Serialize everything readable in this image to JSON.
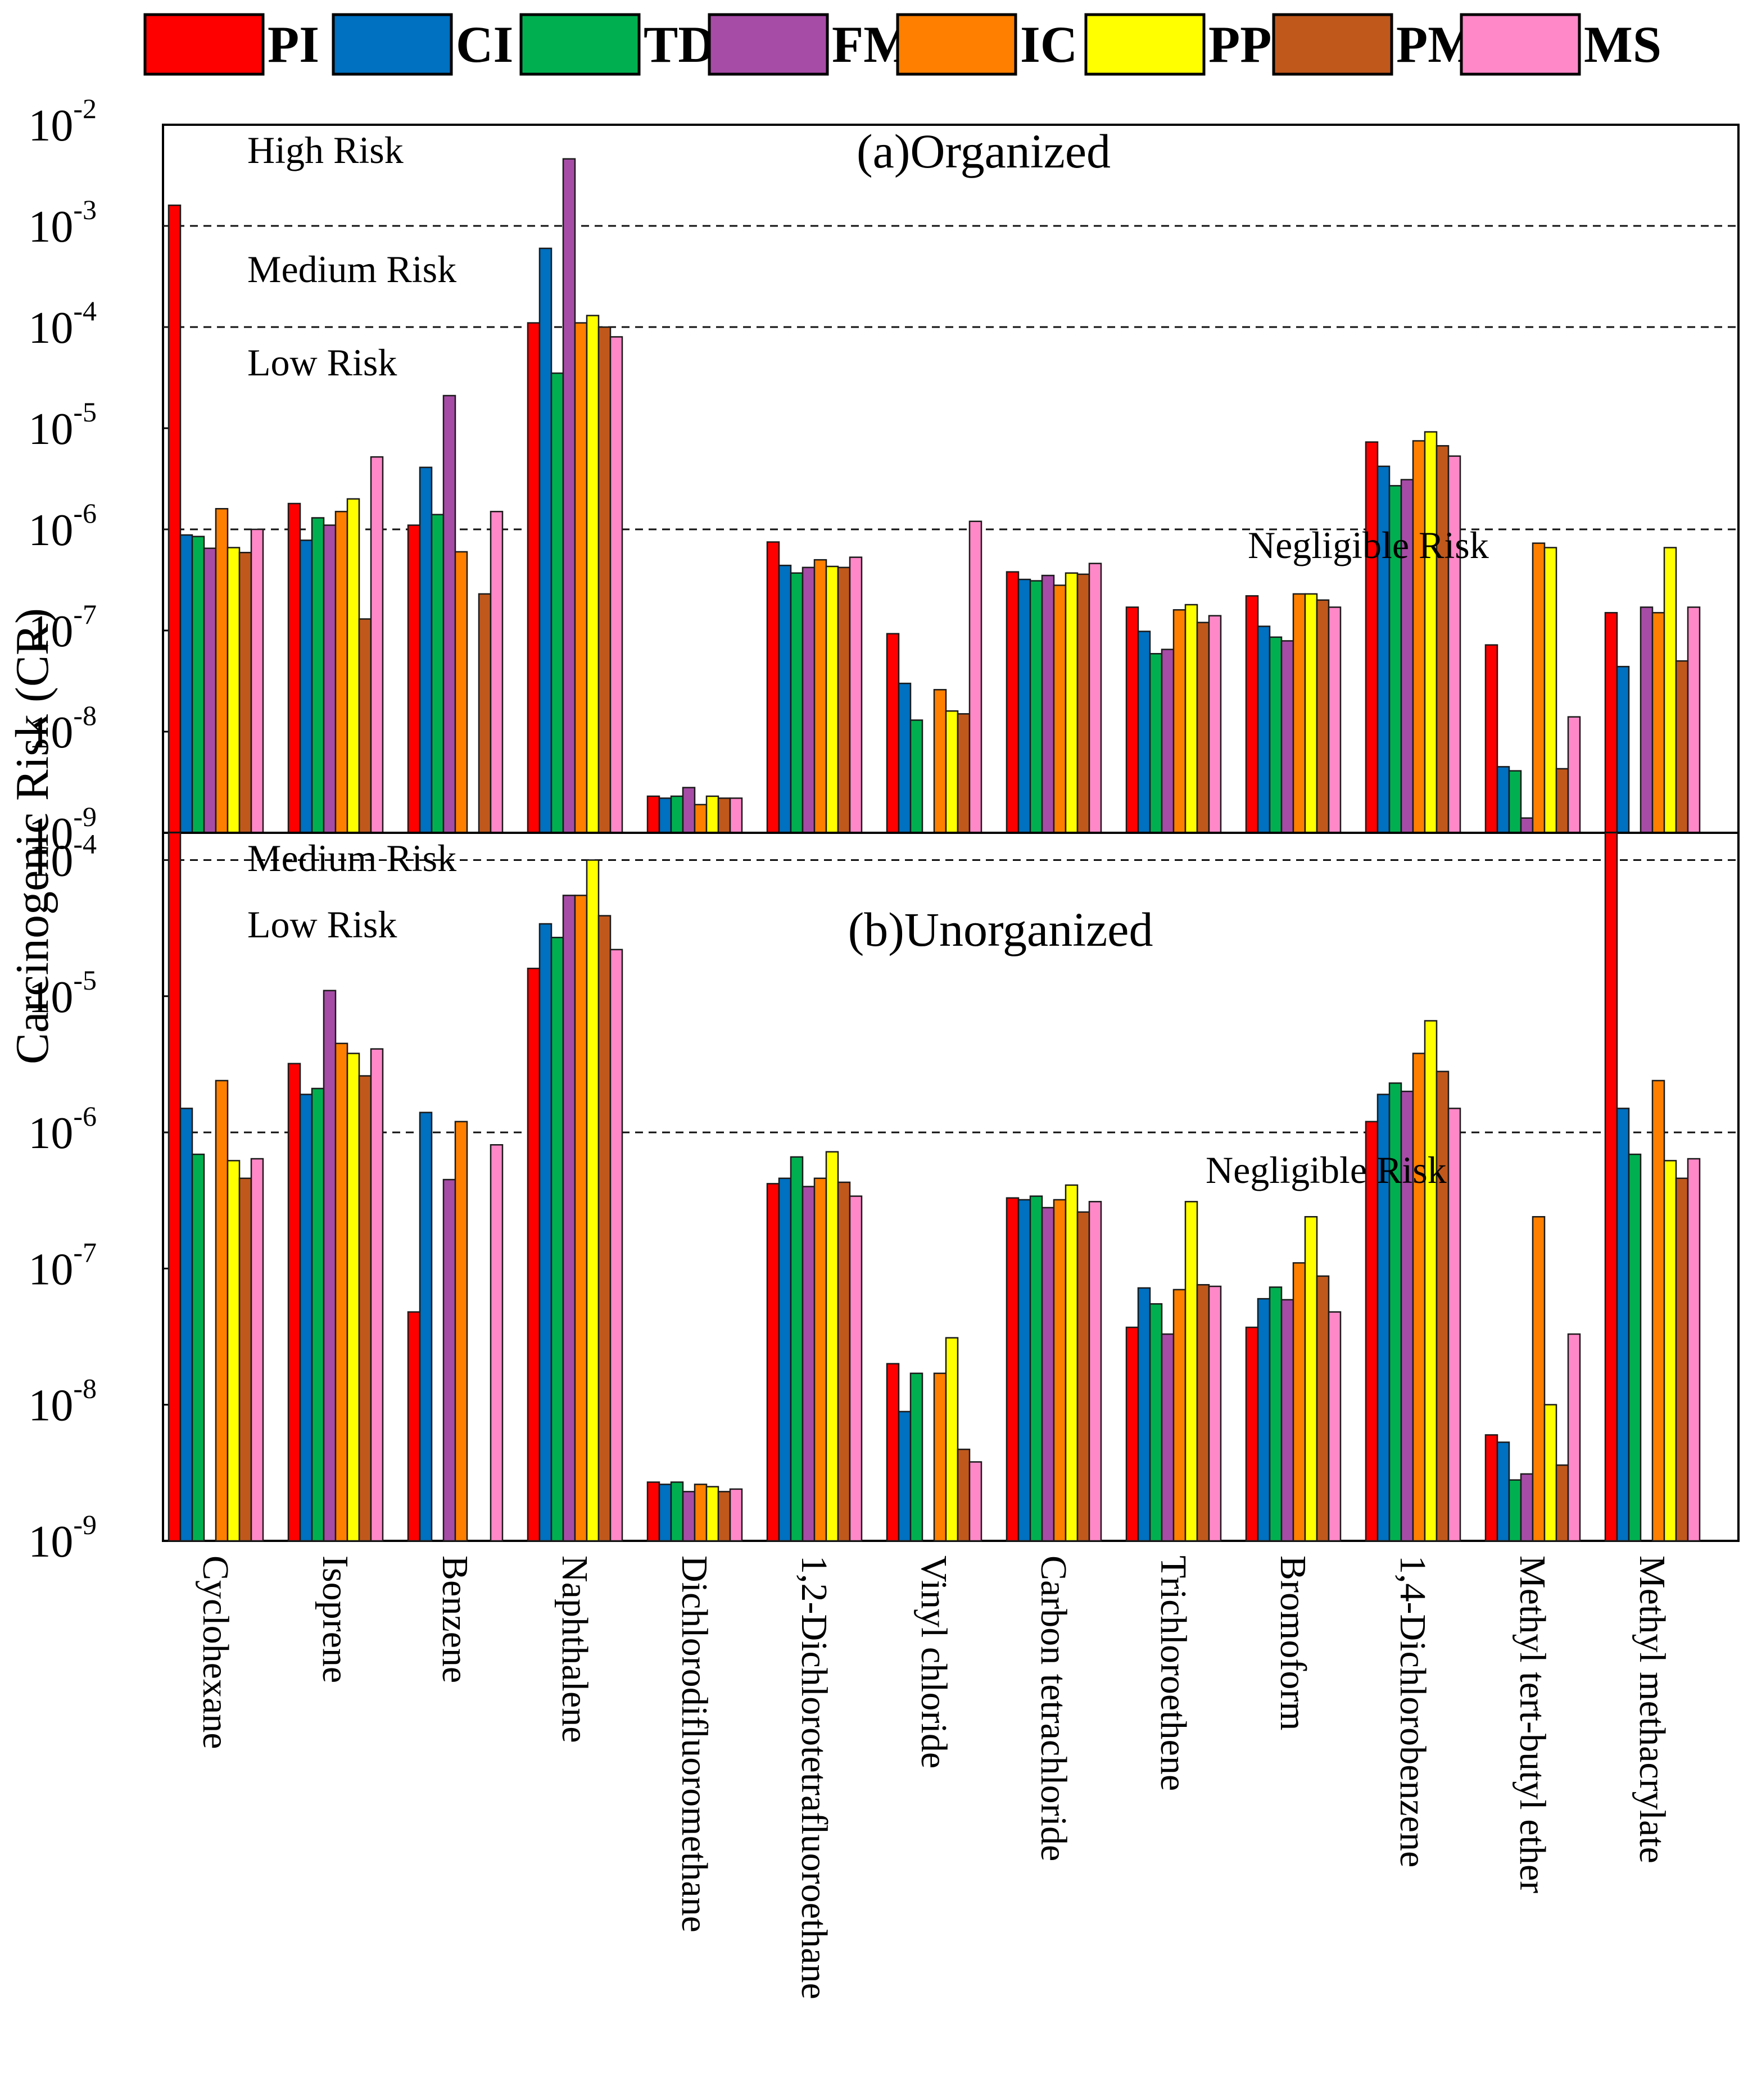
{
  "chart_data": {
    "type": "bar",
    "scale": "log",
    "ylabel": "Carcinogenic Risk (CR)",
    "series_colors": {
      "PI": "#ff0000",
      "CI": "#0070c0",
      "TDP": "#00b050",
      "FM": "#a64ca6",
      "IC": "#ff7f00",
      "PP": "#ffff00",
      "PM": "#c0581c",
      "MS": "#ff88c8"
    },
    "legend": [
      "PI",
      "CI",
      "TDP",
      "FM",
      "IC",
      "PP",
      "PM",
      "MS"
    ],
    "categories": [
      "Cyclohexane",
      "Isoprene",
      "Benzene",
      "Naphthalene",
      "Dichlorodifluoromethane",
      "1,2-Dichlorotetrafluoroethane",
      "Vinyl chloride",
      "Carbon tetrachloride",
      "Trichloroethene",
      "Bromoform",
      "1,4-Dichlorobenzene",
      "Methyl tert-butyl ether",
      "Methyl methacrylate"
    ],
    "panels": [
      {
        "title": "(a)Organized",
        "ylim_exp": [
          -9,
          -2
        ],
        "tick_exponents": [
          "-9",
          "-8",
          "-7",
          "-6",
          "-5",
          "-4",
          "-3",
          "-2"
        ],
        "thresholds": [
          -3,
          -4,
          -6
        ],
        "zones": [
          "High Risk",
          "Medium Risk",
          "Low Risk",
          "Negligible Risk"
        ],
        "series": [
          {
            "name": "PI",
            "values": [
              0.0016,
              1.8e-06,
              1.1e-06,
              0.00011,
              2.3e-09,
              7.5e-07,
              9.3e-08,
              3.8e-07,
              1.7e-07,
              2.2e-07,
              7.3e-06,
              7.2e-08,
              1.5e-07
            ]
          },
          {
            "name": "CI",
            "values": [
              8.8e-07,
              7.8e-07,
              4.1e-06,
              0.0006,
              2.2e-09,
              4.4e-07,
              3e-08,
              3.2e-07,
              9.8e-08,
              1.1e-07,
              4.2e-06,
              4.5e-09,
              4.4e-08
            ]
          },
          {
            "name": "TDP",
            "values": [
              8.5e-07,
              1.3e-06,
              1.4e-06,
              3.5e-05,
              2.3e-09,
              3.7e-07,
              1.3e-08,
              3.1e-07,
              5.9e-08,
              8.6e-08,
              2.7e-06,
              4.1e-09,
              null
            ]
          },
          {
            "name": "FM",
            "values": [
              6.5e-07,
              1.1e-06,
              2.1e-05,
              0.0046,
              2.8e-09,
              4.2e-07,
              null,
              3.5e-07,
              6.5e-08,
              7.9e-08,
              3.1e-06,
              1.4e-09,
              1.7e-07
            ]
          },
          {
            "name": "IC",
            "values": [
              1.6e-06,
              1.5e-06,
              6e-07,
              0.00011,
              1.9e-09,
              5e-07,
              2.6e-08,
              2.8e-07,
              1.6e-07,
              2.3e-07,
              7.5e-06,
              7.3e-07,
              1.5e-07
            ]
          },
          {
            "name": "PP",
            "values": [
              6.6e-07,
              2e-06,
              null,
              0.00013,
              2.3e-09,
              4.3e-07,
              1.6e-08,
              3.7e-07,
              1.8e-07,
              2.3e-07,
              9.2e-06,
              6.6e-07,
              6.6e-07
            ]
          },
          {
            "name": "PM",
            "values": [
              5.9e-07,
              1.3e-07,
              2.3e-07,
              0.0001,
              2.2e-09,
              4.2e-07,
              1.5e-08,
              3.6e-07,
              1.2e-07,
              2e-07,
              6.7e-06,
              4.3e-09,
              5e-08
            ]
          },
          {
            "name": "MS",
            "values": [
              1e-06,
              5.2e-06,
              1.5e-06,
              8e-05,
              2.2e-09,
              5.3e-07,
              1.2e-06,
              4.6e-07,
              1.4e-07,
              1.7e-07,
              5.3e-06,
              1.4e-08,
              1.7e-07
            ]
          }
        ]
      },
      {
        "title": "(b)Unorganized",
        "ylim_exp": [
          -9,
          -3.8
        ],
        "tick_exponents": [
          "-9",
          "-8",
          "-7",
          "-6",
          "-5",
          "-4"
        ],
        "thresholds": [
          -4,
          -6
        ],
        "zones": [
          "Medium Risk",
          "Low Risk",
          "Negligible Risk"
        ],
        "series": [
          {
            "name": "PI",
            "values": [
              0.00019,
              3.2e-06,
              4.8e-08,
              1.6e-05,
              2.7e-09,
              4.2e-07,
              2e-08,
              3.3e-07,
              3.7e-08,
              3.7e-08,
              1.2e-06,
              6e-09,
              0.00019
            ]
          },
          {
            "name": "CI",
            "values": [
              1.5e-06,
              1.9e-06,
              1.4e-06,
              3.4e-05,
              2.6e-09,
              4.6e-07,
              8.9e-09,
              3.2e-07,
              7.2e-08,
              6e-08,
              1.9e-06,
              5.3e-09,
              1.5e-06
            ]
          },
          {
            "name": "TDP",
            "values": [
              6.9e-07,
              2.1e-06,
              null,
              2.7e-05,
              2.7e-09,
              6.6e-07,
              1.7e-08,
              3.4e-07,
              5.5e-08,
              7.3e-08,
              2.3e-06,
              2.8e-09,
              6.9e-07
            ]
          },
          {
            "name": "FM",
            "values": [
              null,
              1.1e-05,
              4.5e-07,
              5.5e-05,
              2.3e-09,
              4e-07,
              null,
              2.8e-07,
              3.3e-08,
              5.9e-08,
              2e-06,
              3.1e-09,
              null
            ]
          },
          {
            "name": "IC",
            "values": [
              2.4e-06,
              4.5e-06,
              1.2e-06,
              5.5e-05,
              2.6e-09,
              4.6e-07,
              1.7e-08,
              3.2e-07,
              7e-08,
              1.1e-07,
              3.8e-06,
              2.4e-07,
              2.4e-06
            ]
          },
          {
            "name": "PP",
            "values": [
              6.2e-07,
              3.8e-06,
              null,
              0.0001,
              2.5e-09,
              7.2e-07,
              3.1e-08,
              4.1e-07,
              3.1e-07,
              2.4e-07,
              6.6e-06,
              1e-08,
              6.2e-07
            ]
          },
          {
            "name": "PM",
            "values": [
              4.6e-07,
              2.6e-06,
              null,
              3.9e-05,
              2.3e-09,
              4.3e-07,
              4.7e-09,
              2.6e-07,
              7.6e-08,
              8.8e-08,
              2.8e-06,
              3.6e-09,
              4.6e-07
            ]
          },
          {
            "name": "MS",
            "values": [
              6.4e-07,
              4.1e-06,
              8.1e-07,
              2.2e-05,
              2.4e-09,
              3.4e-07,
              3.8e-09,
              3.1e-07,
              7.4e-08,
              4.8e-08,
              1.5e-06,
              3.3e-08,
              6.4e-07
            ]
          }
        ]
      }
    ]
  }
}
